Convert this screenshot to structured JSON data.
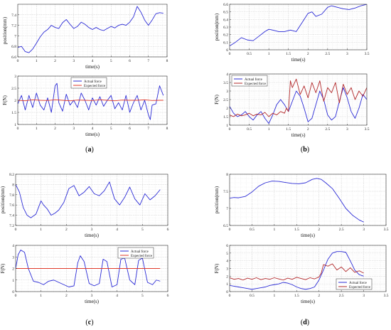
{
  "figure": {
    "panel_labels": [
      {
        "letter": "a"
      },
      {
        "letter": "b"
      },
      {
        "letter": "c"
      },
      {
        "letter": "d"
      }
    ]
  },
  "chart_data": [
    {
      "id": "a-position",
      "type": "line",
      "xlabel": "time(s)",
      "ylabel": "position(mm)",
      "xlim": [
        0,
        8
      ],
      "ylim": [
        6.6,
        7.6
      ],
      "xticks": [
        0,
        1,
        2,
        3,
        4,
        5,
        6,
        7,
        8
      ],
      "yticks": [
        6.6,
        6.8,
        7,
        7.2,
        7.4
      ],
      "grid": true,
      "series": [
        {
          "color": "#2b2bd6",
          "x": [
            0,
            0.2,
            0.4,
            0.6,
            0.8,
            1.0,
            1.2,
            1.4,
            1.6,
            1.8,
            2.0,
            2.2,
            2.4,
            2.6,
            2.8,
            3.0,
            3.2,
            3.4,
            3.6,
            3.8,
            4.0,
            4.2,
            4.4,
            4.6,
            4.8,
            5.0,
            5.2,
            5.4,
            5.6,
            5.8,
            6.0,
            6.2,
            6.4,
            6.6,
            6.8,
            7.0,
            7.2,
            7.4,
            7.6,
            7.8
          ],
          "y": [
            6.78,
            6.8,
            6.7,
            6.68,
            6.75,
            6.86,
            6.98,
            7.07,
            7.12,
            7.2,
            7.16,
            7.14,
            7.25,
            7.31,
            7.22,
            7.14,
            7.18,
            7.26,
            7.22,
            7.16,
            7.12,
            7.16,
            7.12,
            7.1,
            7.14,
            7.18,
            7.15,
            7.2,
            7.22,
            7.2,
            7.26,
            7.36,
            7.56,
            7.45,
            7.3,
            7.2,
            7.3,
            7.42,
            7.44,
            7.43
          ]
        }
      ]
    },
    {
      "id": "a-force",
      "type": "line",
      "xlabel": "time(s)",
      "ylabel": "F(N)",
      "xlim": [
        0,
        8
      ],
      "ylim": [
        1,
        3
      ],
      "xticks": [
        0,
        1,
        2,
        3,
        4,
        5,
        6,
        7,
        8
      ],
      "yticks": [
        1,
        1.5,
        2,
        2.5,
        3
      ],
      "grid": true,
      "legend_position": "top-center",
      "series": [
        {
          "name": "Actual force",
          "color": "#2b2bd6",
          "x": [
            0,
            0.2,
            0.4,
            0.6,
            0.8,
            1.0,
            1.2,
            1.4,
            1.6,
            1.8,
            2.0,
            2.1,
            2.2,
            2.4,
            2.6,
            2.8,
            3.0,
            3.2,
            3.4,
            3.6,
            3.8,
            4.0,
            4.2,
            4.4,
            4.6,
            4.8,
            5.0,
            5.2,
            5.4,
            5.6,
            5.8,
            6.0,
            6.2,
            6.4,
            6.6,
            6.8,
            7.0,
            7.1,
            7.2,
            7.4,
            7.6,
            7.8
          ],
          "y": [
            1.85,
            2.2,
            1.6,
            2.2,
            1.7,
            2.3,
            1.8,
            1.6,
            2.1,
            1.5,
            2.6,
            2.7,
            1.9,
            1.55,
            2.25,
            1.8,
            2.0,
            1.7,
            2.3,
            2.0,
            1.6,
            2.1,
            1.8,
            2.15,
            1.75,
            2.0,
            2.2,
            1.65,
            1.9,
            1.6,
            2.2,
            1.5,
            1.9,
            2.2,
            1.6,
            2.0,
            1.4,
            1.2,
            1.8,
            1.85,
            2.6,
            2.2
          ]
        },
        {
          "name": "Expected force",
          "color": "#e03a2a",
          "x": [
            0,
            0.4,
            0.8,
            1.2,
            1.6,
            2.0,
            2.4,
            2.8,
            3.2,
            3.6,
            4.0,
            4.4,
            4.8,
            5.2,
            5.6,
            6.0,
            6.4,
            6.8,
            7.2,
            7.6,
            7.8
          ],
          "y": [
            2.0,
            1.98,
            2.02,
            2.0,
            1.99,
            2.02,
            2.0,
            1.98,
            2.01,
            2.0,
            1.99,
            2.02,
            2.0,
            1.98,
            2.01,
            2.0,
            2.0,
            2.02,
            1.99,
            2.0,
            2.0
          ]
        }
      ]
    },
    {
      "id": "b-position",
      "type": "line",
      "xlabel": "time(s)",
      "ylabel": "position(mm)",
      "xlim": [
        0,
        3.5
      ],
      "ylim": [
        6.0,
        6.6
      ],
      "xticks": [
        0,
        0.5,
        1,
        1.5,
        2,
        2.5,
        3,
        3.5
      ],
      "yticks": [
        6.0,
        6.1,
        6.2,
        6.3,
        6.4,
        6.5,
        6.6
      ],
      "grid": true,
      "series": [
        {
          "color": "#2b2bd6",
          "x": [
            0,
            0.15,
            0.3,
            0.45,
            0.6,
            0.75,
            0.9,
            1.0,
            1.1,
            1.25,
            1.4,
            1.55,
            1.7,
            1.85,
            2.0,
            2.1,
            2.2,
            2.35,
            2.5,
            2.6,
            2.75,
            2.9,
            3.05,
            3.2,
            3.35,
            3.5
          ],
          "y": [
            6.05,
            6.1,
            6.16,
            6.13,
            6.12,
            6.18,
            6.24,
            6.27,
            6.26,
            6.24,
            6.24,
            6.26,
            6.24,
            6.36,
            6.48,
            6.5,
            6.44,
            6.47,
            6.56,
            6.58,
            6.56,
            6.54,
            6.53,
            6.55,
            6.58,
            6.6
          ]
        }
      ]
    },
    {
      "id": "b-force",
      "type": "line",
      "xlabel": "time(s)",
      "ylabel": "F(N)",
      "xlim": [
        0,
        3.5
      ],
      "ylim": [
        1,
        4
      ],
      "xticks": [
        0,
        0.5,
        1,
        1.5,
        2,
        2.5,
        3,
        3.5
      ],
      "yticks": [
        1,
        1.5,
        2,
        2.5,
        3,
        3.5,
        4
      ],
      "grid": true,
      "legend_position": "top-left",
      "series": [
        {
          "name": "Actual force",
          "color": "#2b2bd6",
          "x": [
            0,
            0.1,
            0.2,
            0.3,
            0.4,
            0.5,
            0.6,
            0.7,
            0.8,
            0.9,
            1.0,
            1.1,
            1.2,
            1.3,
            1.4,
            1.5,
            1.6,
            1.7,
            1.8,
            1.9,
            2.0,
            2.1,
            2.2,
            2.3,
            2.4,
            2.5,
            2.6,
            2.7,
            2.8,
            2.9,
            3.0,
            3.1,
            3.2,
            3.3,
            3.4,
            3.5
          ],
          "y": [
            2.1,
            1.7,
            1.5,
            1.6,
            1.8,
            1.5,
            1.3,
            1.6,
            1.8,
            1.4,
            1.1,
            1.6,
            2.2,
            2.5,
            2.2,
            1.8,
            2.4,
            3.0,
            2.7,
            2.0,
            1.2,
            1.4,
            2.2,
            3.0,
            2.5,
            1.6,
            1.3,
            1.5,
            2.4,
            3.2,
            2.6,
            1.8,
            1.4,
            2.0,
            2.8,
            2.5
          ]
        },
        {
          "name": "Expected force",
          "color": "#b2282a",
          "x": [
            0,
            0.1,
            0.2,
            0.3,
            0.4,
            0.5,
            0.6,
            0.7,
            0.8,
            0.9,
            1.0,
            1.1,
            1.2,
            1.3,
            1.4,
            1.45,
            1.5,
            1.55,
            1.6,
            1.7,
            1.8,
            1.9,
            2.0,
            2.1,
            2.2,
            2.3,
            2.4,
            2.5,
            2.6,
            2.7,
            2.8,
            2.9,
            3.0,
            3.1,
            3.2,
            3.3,
            3.4,
            3.5
          ],
          "y": [
            1.6,
            1.5,
            1.65,
            1.55,
            1.6,
            1.7,
            1.55,
            1.65,
            1.6,
            1.75,
            1.5,
            1.7,
            1.6,
            1.8,
            1.7,
            2.0,
            1.8,
            3.6,
            3.2,
            3.7,
            2.8,
            3.3,
            2.6,
            3.5,
            2.9,
            3.6,
            2.4,
            3.2,
            2.9,
            3.5,
            2.3,
            3.4,
            2.8,
            3.2,
            2.5,
            3.0,
            2.7,
            3.2
          ]
        }
      ]
    },
    {
      "id": "c-position",
      "type": "line",
      "xlabel": "time(s)",
      "ylabel": "position(mm)",
      "xlim": [
        0,
        6
      ],
      "ylim": [
        7.2,
        8.2
      ],
      "xticks": [
        0,
        1,
        2,
        3,
        4,
        5,
        6
      ],
      "yticks": [
        7.2,
        7.4,
        7.6,
        7.8,
        8,
        8.2
      ],
      "grid": true,
      "series": [
        {
          "color": "#2b2bd6",
          "x": [
            0,
            0.15,
            0.3,
            0.45,
            0.6,
            0.8,
            1.0,
            1.1,
            1.25,
            1.4,
            1.55,
            1.7,
            1.9,
            2.1,
            2.3,
            2.5,
            2.7,
            2.9,
            3.1,
            3.3,
            3.5,
            3.7,
            3.9,
            4.1,
            4.3,
            4.5,
            4.7,
            4.9,
            5.1,
            5.3,
            5.5,
            5.7
          ],
          "y": [
            8.0,
            7.85,
            7.55,
            7.4,
            7.35,
            7.42,
            7.68,
            7.6,
            7.52,
            7.4,
            7.44,
            7.5,
            7.65,
            7.92,
            7.98,
            7.78,
            7.85,
            7.96,
            7.82,
            7.78,
            7.88,
            8.05,
            7.72,
            7.6,
            7.75,
            7.95,
            7.72,
            7.6,
            7.82,
            7.7,
            7.78,
            7.9
          ]
        }
      ]
    },
    {
      "id": "c-force",
      "type": "line",
      "xlabel": "time(s)",
      "ylabel": "F(N)",
      "xlim": [
        0,
        6
      ],
      "ylim": [
        0,
        4
      ],
      "xticks": [
        0,
        1,
        2,
        3,
        4,
        5,
        6
      ],
      "yticks": [
        0,
        1,
        2,
        3,
        4
      ],
      "grid": true,
      "legend_position": "top-right",
      "series": [
        {
          "name": "Actual force",
          "color": "#2b2bd6",
          "x": [
            0,
            0.1,
            0.2,
            0.35,
            0.5,
            0.7,
            0.9,
            1.1,
            1.3,
            1.5,
            1.7,
            1.9,
            2.1,
            2.3,
            2.45,
            2.55,
            2.7,
            2.9,
            3.1,
            3.3,
            3.45,
            3.6,
            3.8,
            4.0,
            4.15,
            4.3,
            4.5,
            4.7,
            4.85,
            5.0,
            5.2,
            5.4,
            5.55,
            5.7
          ],
          "y": [
            2.0,
            3.2,
            3.6,
            3.4,
            2.0,
            0.9,
            0.8,
            0.6,
            0.9,
            1.0,
            0.8,
            0.6,
            0.4,
            0.5,
            2.5,
            3.1,
            2.6,
            0.7,
            0.5,
            0.7,
            2.8,
            2.6,
            0.4,
            0.6,
            2.8,
            2.9,
            1.0,
            0.6,
            2.7,
            2.9,
            0.8,
            0.6,
            1.0,
            0.9
          ]
        },
        {
          "name": "Expected force",
          "color": "#e03a2a",
          "x": [
            0,
            5.7
          ],
          "y": [
            2.0,
            2.0
          ]
        }
      ]
    },
    {
      "id": "d-position",
      "type": "line",
      "xlabel": "time(s)",
      "ylabel": "position(mm)",
      "xlim": [
        0,
        3.5
      ],
      "ylim": [
        6.5,
        8
      ],
      "xticks": [
        0,
        0.5,
        1,
        1.5,
        2,
        2.5,
        3,
        3.5
      ],
      "yticks": [
        6.5,
        7,
        7.5,
        8
      ],
      "grid": true,
      "series": [
        {
          "color": "#2b2bd6",
          "x": [
            0,
            0.1,
            0.2,
            0.35,
            0.5,
            0.65,
            0.8,
            0.95,
            1.1,
            1.25,
            1.4,
            1.55,
            1.7,
            1.85,
            1.95,
            2.05,
            2.15,
            2.3,
            2.45,
            2.6,
            2.75,
            2.9,
            3.0
          ],
          "y": [
            7.3,
            7.32,
            7.31,
            7.35,
            7.48,
            7.65,
            7.75,
            7.8,
            7.79,
            7.76,
            7.73,
            7.72,
            7.75,
            7.85,
            7.88,
            7.85,
            7.75,
            7.58,
            7.3,
            7.0,
            6.8,
            6.66,
            6.6
          ]
        }
      ]
    },
    {
      "id": "d-force",
      "type": "line",
      "xlabel": "time(s)",
      "ylabel": "F(N)",
      "xlim": [
        0,
        3.5
      ],
      "ylim": [
        0,
        6
      ],
      "xticks": [
        0,
        0.5,
        1,
        1.5,
        2,
        2.5,
        3,
        3.5
      ],
      "yticks": [
        0,
        1,
        2,
        3,
        4,
        5,
        6
      ],
      "grid": true,
      "legend_position": "bottom-right",
      "series": [
        {
          "name": "Actual force",
          "color": "#2b2bd6",
          "x": [
            0,
            0.1,
            0.2,
            0.3,
            0.4,
            0.5,
            0.6,
            0.7,
            0.8,
            0.9,
            1.0,
            1.1,
            1.2,
            1.3,
            1.4,
            1.5,
            1.6,
            1.7,
            1.8,
            1.9,
            2.0,
            2.1,
            2.2,
            2.3,
            2.4,
            2.5,
            2.6,
            2.7,
            2.8,
            2.9,
            3.0
          ],
          "y": [
            0.8,
            0.7,
            0.6,
            0.5,
            0.4,
            0.3,
            0.4,
            0.5,
            0.6,
            0.8,
            0.9,
            1.0,
            1.2,
            1.1,
            0.9,
            0.6,
            0.4,
            0.3,
            0.4,
            0.6,
            1.5,
            2.8,
            4.2,
            5.0,
            5.2,
            5.2,
            5.1,
            4.0,
            2.8,
            2.2,
            2.0
          ]
        },
        {
          "name": "Expected force",
          "color": "#b2282a",
          "x": [
            0,
            0.1,
            0.2,
            0.3,
            0.4,
            0.5,
            0.6,
            0.7,
            0.8,
            0.9,
            1.0,
            1.1,
            1.2,
            1.3,
            1.4,
            1.5,
            1.6,
            1.7,
            1.8,
            1.9,
            2.0,
            2.05,
            2.1,
            2.2,
            2.3,
            2.4,
            2.5,
            2.6,
            2.7,
            2.8,
            2.9,
            3.0
          ],
          "y": [
            1.8,
            1.6,
            1.7,
            1.5,
            1.75,
            1.6,
            1.8,
            1.55,
            1.7,
            1.6,
            1.8,
            1.65,
            1.5,
            1.75,
            1.6,
            1.85,
            1.7,
            1.55,
            1.8,
            1.65,
            1.9,
            2.4,
            3.5,
            3.3,
            3.6,
            2.8,
            3.2,
            2.6,
            3.1,
            2.5,
            2.7,
            2.4
          ]
        }
      ]
    }
  ]
}
